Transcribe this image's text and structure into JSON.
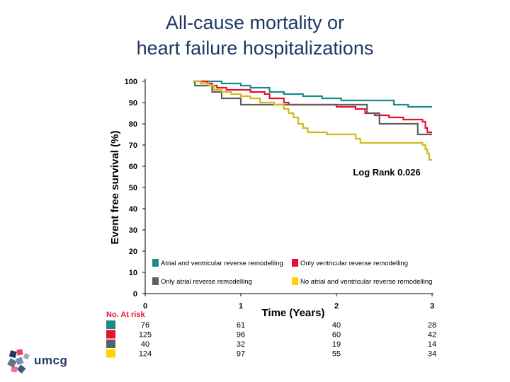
{
  "title": {
    "line1": "All-cause mortality or",
    "line2": "heart failure hospitalizations"
  },
  "chart_data": {
    "type": "line",
    "step": true,
    "xlabel": "Time (Years)",
    "ylabel": "Event free survival (%)",
    "xlim": [
      0,
      3
    ],
    "ylim": [
      0,
      100
    ],
    "xticks": [
      "0",
      "1",
      "2",
      "3"
    ],
    "yticks": [
      "0",
      "10",
      "20",
      "30",
      "40",
      "50",
      "60",
      "70",
      "80",
      "90",
      "100"
    ],
    "annotation": "Log Rank 0.026",
    "series": [
      {
        "name": "Atrial and ventricular reverse remodelling",
        "color": "#1b8a8a",
        "x": [
          0.5,
          0.63,
          0.8,
          1.0,
          1.1,
          1.3,
          1.45,
          1.65,
          1.85,
          2.05,
          2.25,
          2.4,
          2.6,
          2.75,
          3.0
        ],
        "y": [
          100,
          100,
          99,
          98,
          97,
          95,
          94,
          93,
          92,
          91,
          91,
          91,
          89,
          88,
          88
        ]
      },
      {
        "name": "Only ventricular reverse remodelling",
        "color": "#e8102e",
        "x": [
          0.55,
          0.65,
          0.7,
          0.75,
          0.8,
          0.85,
          1.0,
          1.1,
          1.25,
          1.3,
          1.45,
          1.5,
          1.75,
          2.0,
          2.2,
          2.3,
          2.4,
          2.55,
          2.7,
          2.9,
          2.93,
          2.95,
          3.0
        ],
        "y": [
          100,
          99,
          98,
          97,
          97,
          96,
          96,
          95,
          94,
          92,
          90,
          89,
          89,
          88,
          87,
          85,
          84,
          83,
          82,
          81,
          78,
          76,
          76
        ]
      },
      {
        "name": "Only atrial reverse remodelling",
        "color": "#5f6061",
        "x": [
          0.5,
          0.52,
          0.7,
          0.8,
          1.0,
          1.3,
          1.5,
          1.8,
          2.0,
          2.3,
          2.32,
          2.45,
          2.55,
          2.7,
          2.85,
          3.0
        ],
        "y": [
          100,
          98,
          95,
          92,
          89,
          89,
          89,
          89,
          89,
          89,
          85,
          80,
          80,
          80,
          75,
          75
        ]
      },
      {
        "name": "No atrial and ventricular reverse remodelling",
        "color": "#cdbb1a",
        "x": [
          0.5,
          0.58,
          0.66,
          0.72,
          0.8,
          0.9,
          1.0,
          1.1,
          1.2,
          1.35,
          1.45,
          1.5,
          1.55,
          1.6,
          1.65,
          1.7,
          1.8,
          1.9,
          2.1,
          2.2,
          2.25,
          2.5,
          2.7,
          2.9,
          2.93,
          2.95,
          2.97,
          3.0
        ],
        "y": [
          100,
          99,
          98,
          96,
          95,
          94,
          93,
          92,
          90,
          89,
          87,
          85,
          83,
          80,
          78,
          76,
          76,
          75,
          75,
          73,
          71,
          71,
          71,
          70,
          68,
          66,
          63,
          63
        ]
      }
    ],
    "legend_position": "bottom-inside",
    "risk_table": {
      "header": "No. At risk",
      "rows": [
        {
          "color": "#1b8a8a",
          "values": [
            "76",
            "61",
            "40",
            "28"
          ]
        },
        {
          "color": "#e8102e",
          "values": [
            "125",
            "96",
            "60",
            "42"
          ]
        },
        {
          "color": "#5f6061",
          "values": [
            "40",
            "32",
            "19",
            "14"
          ]
        },
        {
          "color": "#ffd400",
          "values": [
            "124",
            "97",
            "55",
            "34"
          ]
        }
      ]
    }
  },
  "logo": {
    "text": "umcg",
    "icon": "umcg-logo-icon"
  }
}
